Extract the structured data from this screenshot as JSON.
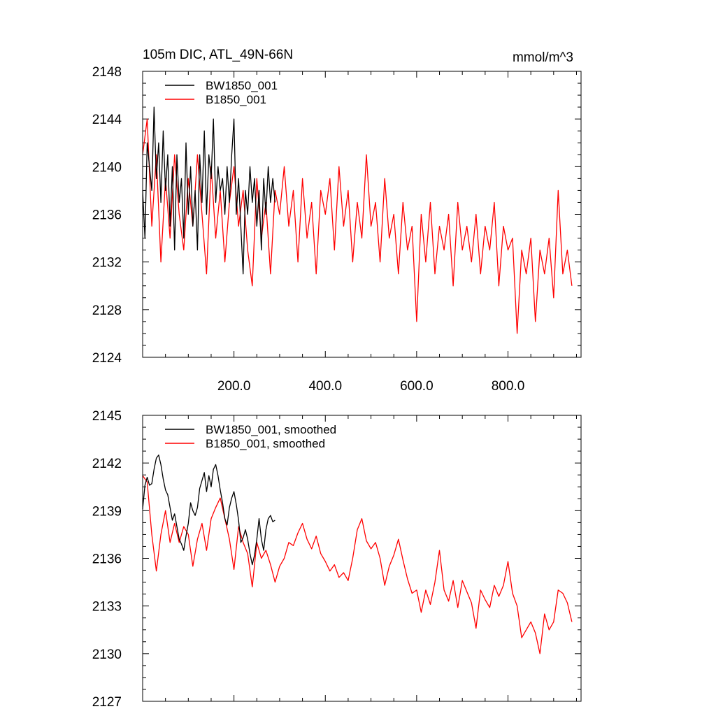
{
  "chart_data": [
    {
      "type": "line",
      "title": "105m DIC, ATL_49N-66N",
      "units": "mmol/m^3",
      "xlabel": "",
      "ylabel": "",
      "xlim": [
        0,
        960
      ],
      "ylim": [
        2124,
        2148
      ],
      "xticks": [
        200,
        400,
        600,
        800
      ],
      "xtick_labels": [
        "200.0",
        "400.0",
        "600.0",
        "800.0"
      ],
      "yticks": [
        2124,
        2128,
        2132,
        2136,
        2140,
        2144,
        2148
      ],
      "ytick_labels": [
        "2124",
        "2128",
        "2132",
        "2136",
        "2140",
        "2144",
        "2148"
      ],
      "legend_position": "top-left",
      "series": [
        {
          "name": "BW1850_001",
          "color": "#000000",
          "x": [
            0,
            5,
            10,
            15,
            20,
            25,
            30,
            35,
            40,
            45,
            50,
            55,
            60,
            65,
            70,
            75,
            80,
            85,
            90,
            95,
            100,
            105,
            110,
            115,
            120,
            125,
            130,
            135,
            140,
            145,
            150,
            155,
            160,
            165,
            170,
            175,
            180,
            185,
            190,
            195,
            200,
            205,
            210,
            215,
            220,
            225,
            230,
            235,
            240,
            245,
            250,
            255,
            260,
            265,
            270,
            275,
            280,
            285,
            290
          ],
          "values": [
            2138,
            2134,
            2142,
            2140,
            2138,
            2145,
            2139,
            2142,
            2137,
            2143,
            2138,
            2141,
            2135,
            2140,
            2133,
            2141,
            2137,
            2139,
            2134,
            2142,
            2136,
            2140,
            2135,
            2138,
            2133,
            2141,
            2137,
            2143,
            2136,
            2141,
            2139,
            2144,
            2137,
            2140,
            2138,
            2139,
            2136,
            2140,
            2137,
            2141,
            2144,
            2136,
            2139,
            2135,
            2131,
            2138,
            2136,
            2140,
            2137,
            2139,
            2135,
            2138,
            2133,
            2139,
            2136,
            2140,
            2137,
            2139,
            2137
          ]
        },
        {
          "name": "B1850_001",
          "color": "#ff0000",
          "x": [
            0,
            10,
            20,
            30,
            40,
            50,
            60,
            70,
            80,
            90,
            100,
            110,
            120,
            130,
            140,
            150,
            160,
            170,
            180,
            190,
            200,
            210,
            220,
            230,
            240,
            250,
            260,
            270,
            280,
            290,
            300,
            310,
            320,
            330,
            340,
            350,
            360,
            370,
            380,
            390,
            400,
            410,
            420,
            430,
            440,
            450,
            460,
            470,
            480,
            490,
            500,
            510,
            520,
            530,
            540,
            550,
            560,
            570,
            580,
            590,
            600,
            610,
            620,
            630,
            640,
            650,
            660,
            670,
            680,
            690,
            700,
            710,
            720,
            730,
            740,
            750,
            760,
            770,
            780,
            790,
            800,
            810,
            820,
            830,
            840,
            850,
            860,
            870,
            880,
            890,
            900,
            910,
            920,
            930,
            940
          ],
          "values": [
            2141,
            2144,
            2135,
            2141,
            2132,
            2139,
            2134,
            2141,
            2136,
            2133,
            2139,
            2135,
            2141,
            2136,
            2131,
            2140,
            2134,
            2138,
            2132,
            2137,
            2140,
            2135,
            2138,
            2133,
            2130,
            2139,
            2134,
            2137,
            2131,
            2138,
            2136,
            2140,
            2135,
            2138,
            2132,
            2139,
            2134,
            2137,
            2131,
            2138,
            2136,
            2139,
            2133,
            2140,
            2135,
            2138,
            2132,
            2137,
            2134,
            2141,
            2135,
            2137,
            2132,
            2139,
            2134,
            2136,
            2131,
            2137,
            2133,
            2135,
            2127,
            2136,
            2132,
            2137,
            2131,
            2135,
            2133,
            2136,
            2130,
            2137,
            2133,
            2135,
            2132,
            2136,
            2131,
            2135,
            2133,
            2137,
            2130,
            2135,
            2133,
            2134,
            2126,
            2133,
            2131,
            2134,
            2127,
            2133,
            2131,
            2134,
            2129,
            2138,
            2131,
            2133,
            2130
          ]
        }
      ]
    },
    {
      "type": "line",
      "title": "",
      "xlabel": "",
      "ylabel": "",
      "xlim": [
        0,
        960
      ],
      "ylim": [
        2127,
        2145
      ],
      "xticks": [
        200,
        400,
        600,
        800
      ],
      "xtick_labels": [],
      "yticks": [
        2127,
        2130,
        2133,
        2136,
        2139,
        2142,
        2145
      ],
      "ytick_labels": [
        "2127",
        "2130",
        "2133",
        "2136",
        "2139",
        "2142",
        "2145"
      ],
      "legend_position": "top-left",
      "series": [
        {
          "name": "BW1850_001, smoothed",
          "color": "#000000",
          "x": [
            0,
            5,
            10,
            15,
            20,
            25,
            30,
            35,
            40,
            45,
            50,
            55,
            60,
            65,
            70,
            75,
            80,
            85,
            90,
            95,
            100,
            105,
            110,
            115,
            120,
            125,
            130,
            135,
            140,
            145,
            150,
            155,
            160,
            165,
            170,
            175,
            180,
            185,
            190,
            195,
            200,
            205,
            210,
            215,
            220,
            225,
            230,
            235,
            240,
            245,
            250,
            255,
            260,
            265,
            270,
            275,
            280,
            285,
            290
          ],
          "values": [
            2139.1,
            2140.6,
            2141.1,
            2140.6,
            2140.7,
            2141.6,
            2142.3,
            2142.5,
            2141.9,
            2141.0,
            2140.3,
            2140.0,
            2139.2,
            2138.4,
            2138.8,
            2138.0,
            2137.2,
            2136.9,
            2136.5,
            2137.4,
            2138.2,
            2139.5,
            2139.0,
            2138.7,
            2139.2,
            2140.4,
            2140.9,
            2141.4,
            2140.2,
            2141.2,
            2140.5,
            2141.6,
            2141.9,
            2141.2,
            2140.3,
            2139.5,
            2138.5,
            2138.1,
            2139.2,
            2139.8,
            2140.2,
            2139.4,
            2138.4,
            2137.0,
            2137.3,
            2137.8,
            2137.2,
            2136.3,
            2135.6,
            2136.2,
            2137.2,
            2138.5,
            2137.2,
            2136.5,
            2137.8,
            2138.5,
            2138.7,
            2138.3,
            2138.4
          ]
        },
        {
          "name": "B1850_001, smoothed",
          "color": "#ff0000",
          "x": [
            0,
            10,
            20,
            30,
            40,
            50,
            60,
            70,
            80,
            90,
            100,
            110,
            120,
            130,
            140,
            150,
            160,
            170,
            180,
            190,
            200,
            210,
            220,
            230,
            240,
            250,
            260,
            270,
            280,
            290,
            300,
            310,
            320,
            330,
            340,
            350,
            360,
            370,
            380,
            390,
            400,
            410,
            420,
            430,
            440,
            450,
            460,
            470,
            480,
            490,
            500,
            510,
            520,
            530,
            540,
            550,
            560,
            570,
            580,
            590,
            600,
            610,
            620,
            630,
            640,
            650,
            660,
            670,
            680,
            690,
            700,
            710,
            720,
            730,
            740,
            750,
            760,
            770,
            780,
            790,
            800,
            810,
            820,
            830,
            840,
            850,
            860,
            870,
            880,
            890,
            900,
            910,
            920,
            930,
            940
          ],
          "values": [
            2141.2,
            2140.8,
            2137.5,
            2135.2,
            2137.5,
            2139.0,
            2137.0,
            2138.2,
            2137.0,
            2138.0,
            2137.5,
            2135.5,
            2137.2,
            2138.2,
            2136.5,
            2138.5,
            2139.2,
            2139.8,
            2138.5,
            2137.2,
            2135.3,
            2138.0,
            2137.0,
            2136.3,
            2134.2,
            2137.0,
            2136.0,
            2136.5,
            2135.6,
            2134.5,
            2135.5,
            2136.0,
            2137.0,
            2136.8,
            2137.6,
            2138.2,
            2137.2,
            2136.6,
            2137.4,
            2136.3,
            2135.8,
            2135.2,
            2135.6,
            2134.8,
            2135.1,
            2134.6,
            2136.0,
            2137.8,
            2138.5,
            2137.1,
            2136.6,
            2137.0,
            2136.0,
            2134.3,
            2135.5,
            2136.2,
            2137.2,
            2135.9,
            2134.7,
            2133.8,
            2134.0,
            2132.6,
            2134.0,
            2133.1,
            2134.5,
            2136.5,
            2134.0,
            2133.3,
            2134.6,
            2132.9,
            2134.6,
            2133.9,
            2133.2,
            2131.6,
            2134.0,
            2133.4,
            2132.9,
            2134.3,
            2133.6,
            2134.3,
            2135.8,
            2133.8,
            2133.0,
            2131.0,
            2131.5,
            2132.0,
            2131.3,
            2130.0,
            2132.5,
            2131.5,
            2132.0,
            2134.0,
            2133.8,
            2133.2,
            2132.0
          ]
        }
      ]
    }
  ]
}
